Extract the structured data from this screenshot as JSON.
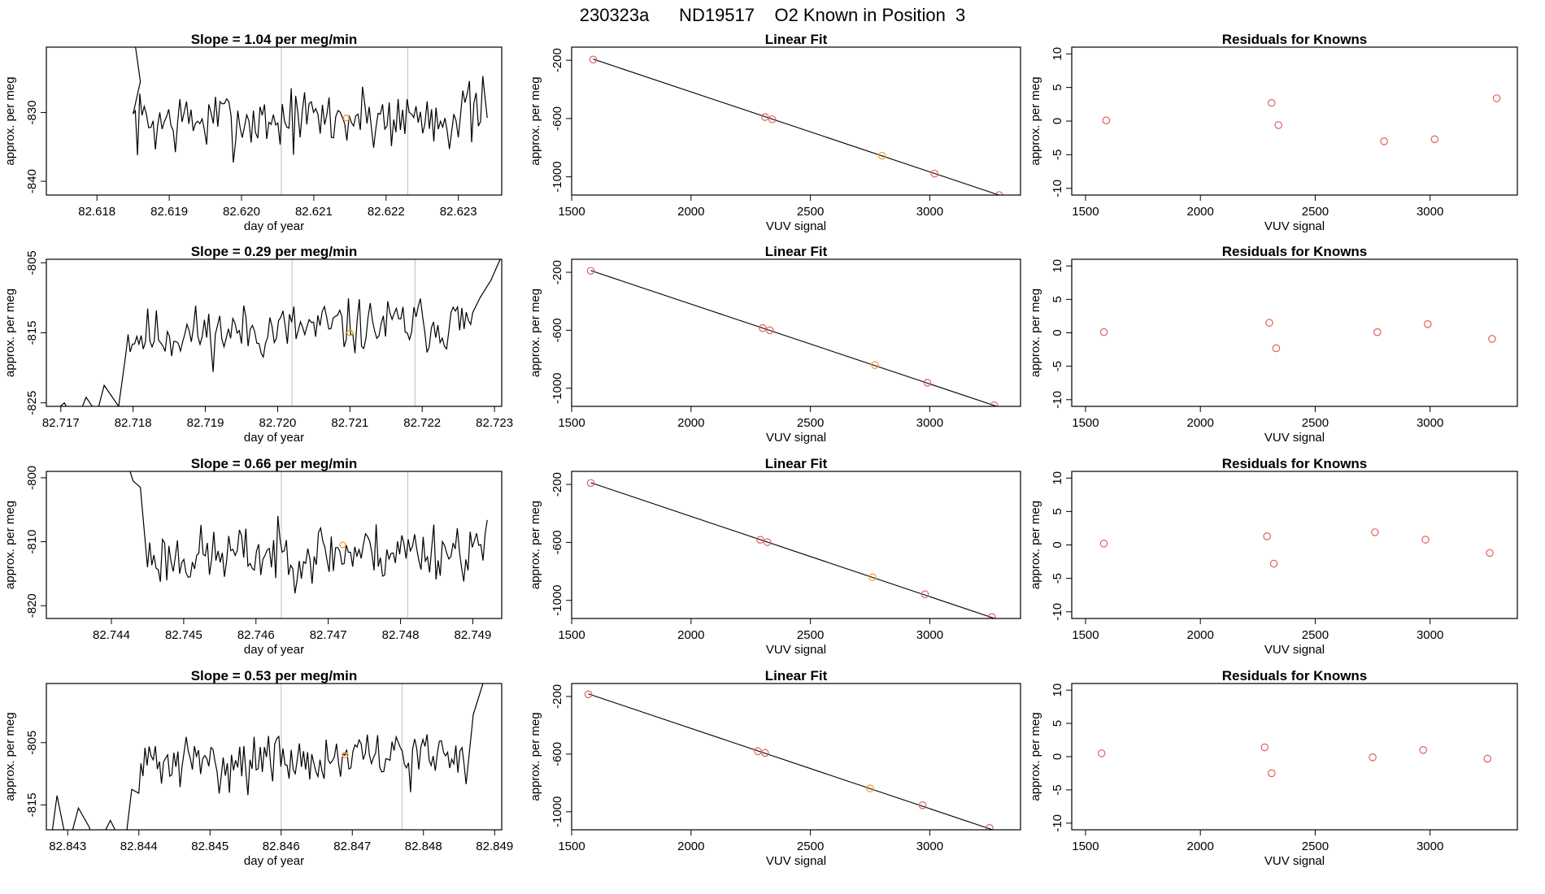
{
  "figure": {
    "title": "230323a      ND19517    O2 Known in Position  3",
    "colors": {
      "line": "#000000",
      "known_point": "#e06060",
      "highlight": "#f0a030",
      "marker_line": "#c8c8c8"
    }
  },
  "chart_data": [
    {
      "type": "line",
      "row": 0,
      "col": 0,
      "title": "Slope =  1.04  per meg/min",
      "xlabel": "day of year",
      "ylabel": "approx. per meg",
      "xlim": [
        82.6173,
        82.6236
      ],
      "ylim": [
        -842,
        -820.5
      ],
      "xticks": [
        "82.618",
        "82.619",
        "82.620",
        "82.621",
        "82.622",
        "82.623"
      ],
      "yticks": [
        "-840",
        "-830"
      ],
      "marker_x": [
        82.62055,
        82.6223
      ],
      "highlight_point": [
        82.62145,
        -830.8
      ],
      "series": {
        "x_start": 82.6185,
        "x_end": 82.6234,
        "n": 160,
        "base": -831.5,
        "trend": 1.2,
        "amp": 4.2,
        "seed": 7,
        "lead": [
          [
            82.6185,
            -818
          ],
          [
            82.6186,
            -825.5
          ]
        ]
      }
    },
    {
      "type": "scatter",
      "row": 0,
      "col": 1,
      "title": "Linear Fit",
      "xlabel": "VUV signal",
      "ylabel": "approx. per meg",
      "xlim": [
        1500,
        3380
      ],
      "ylim": [
        -1125,
        -110
      ],
      "xticks": [
        "1500",
        "2000",
        "2500",
        "3000"
      ],
      "yticks": [
        "-200",
        "-600",
        "-1000"
      ],
      "fit": [
        [
          1590,
          -192
        ],
        [
          3290,
          -1125
        ]
      ],
      "points": [
        [
          1590,
          -195
        ],
        [
          2310,
          -590
        ],
        [
          2340,
          -605
        ],
        [
          2800,
          -855
        ],
        [
          3020,
          -978
        ],
        [
          3290,
          -1125
        ]
      ],
      "highlight_index": 3
    },
    {
      "type": "scatter",
      "row": 0,
      "col": 2,
      "title": "Residuals for Knowns",
      "xlabel": "VUV signal",
      "ylabel": "approx. per meg",
      "xlim": [
        1440,
        3380
      ],
      "ylim": [
        -11,
        11
      ],
      "xticks": [
        "1500",
        "2000",
        "2500",
        "3000"
      ],
      "yticks": [
        "10",
        "5",
        "0",
        "-5",
        "-10"
      ],
      "points": [
        [
          1590,
          0.1
        ],
        [
          2310,
          2.7
        ],
        [
          2340,
          -0.6
        ],
        [
          2800,
          -3.0
        ],
        [
          3020,
          -2.7
        ],
        [
          3290,
          3.4
        ]
      ]
    },
    {
      "type": "line",
      "row": 1,
      "col": 0,
      "title": "Slope =  0.29  per meg/min",
      "xlabel": "day of year",
      "ylabel": "approx. per meg",
      "xlim": [
        82.7168,
        82.7231
      ],
      "ylim": [
        -825.5,
        -804.5
      ],
      "xticks": [
        "82.717",
        "82.718",
        "82.719",
        "82.720",
        "82.721",
        "82.722",
        "82.723"
      ],
      "yticks": [
        "-805",
        "-815",
        "-825"
      ],
      "marker_x": [
        82.7202,
        82.7219
      ],
      "highlight_point": [
        82.721,
        -815.0
      ],
      "series": {
        "x_start": 82.7179,
        "x_end": 82.7227,
        "n": 160,
        "base": -815.5,
        "trend": 2.0,
        "amp": 3.4,
        "seed": 11,
        "lead": [
          [
            82.7167,
            -828
          ],
          [
            82.71705,
            -825.0
          ],
          [
            82.7172,
            -828
          ],
          [
            82.71735,
            -824.2
          ],
          [
            82.7175,
            -826.5
          ],
          [
            82.7176,
            -822.5
          ],
          [
            82.7178,
            -825.5
          ]
        ],
        "tail": [
          [
            82.7228,
            -810
          ],
          [
            82.72295,
            -807.5
          ],
          [
            82.7231,
            -804.0
          ]
        ]
      }
    },
    {
      "type": "scatter",
      "row": 1,
      "col": 1,
      "title": "Linear Fit",
      "xlabel": "VUV signal",
      "ylabel": "approx. per meg",
      "xlim": [
        1500,
        3380
      ],
      "ylim": [
        -1125,
        -110
      ],
      "xticks": [
        "1500",
        "2000",
        "2500",
        "3000"
      ],
      "yticks": [
        "-200",
        "-600",
        "-1000"
      ],
      "fit": [
        [
          1580,
          -188
        ],
        [
          3290,
          -1130
        ]
      ],
      "points": [
        [
          1580,
          -190
        ],
        [
          2300,
          -585
        ],
        [
          2330,
          -600
        ],
        [
          2770,
          -840
        ],
        [
          2990,
          -962
        ],
        [
          3270,
          -1118
        ]
      ],
      "highlight_index": 3
    },
    {
      "type": "scatter",
      "row": 1,
      "col": 2,
      "title": "Residuals for Knowns",
      "xlabel": "VUV signal",
      "ylabel": "approx. per meg",
      "xlim": [
        1440,
        3380
      ],
      "ylim": [
        -11,
        11
      ],
      "xticks": [
        "1500",
        "2000",
        "2500",
        "3000"
      ],
      "yticks": [
        "10",
        "5",
        "0",
        "-5",
        "-10"
      ],
      "points": [
        [
          1580,
          0.1
        ],
        [
          2300,
          1.5
        ],
        [
          2330,
          -2.3
        ],
        [
          2770,
          0.1
        ],
        [
          2990,
          1.3
        ],
        [
          3270,
          -0.9
        ]
      ]
    },
    {
      "type": "line",
      "row": 2,
      "col": 0,
      "title": "Slope =  0.66  per meg/min",
      "xlabel": "day of year",
      "ylabel": "approx. per meg",
      "xlim": [
        82.7431,
        82.7494
      ],
      "ylim": [
        -822,
        -799
      ],
      "xticks": [
        "82.744",
        "82.745",
        "82.746",
        "82.747",
        "82.748",
        "82.749"
      ],
      "yticks": [
        "-800",
        "-810",
        "-820"
      ],
      "marker_x": [
        82.74635,
        82.7481
      ],
      "highlight_point": [
        82.7472,
        -810.5
      ],
      "series": {
        "x_start": 82.7445,
        "x_end": 82.7492,
        "n": 160,
        "base": -812.5,
        "trend": 1.5,
        "amp": 4.0,
        "seed": 23,
        "lead": [
          [
            82.7442,
            -797
          ],
          [
            82.7443,
            -800.5
          ],
          [
            82.7444,
            -801.5
          ]
        ]
      }
    },
    {
      "type": "scatter",
      "row": 2,
      "col": 1,
      "title": "Linear Fit",
      "xlabel": "VUV signal",
      "ylabel": "approx. per meg",
      "xlim": [
        1500,
        3380
      ],
      "ylim": [
        -1125,
        -110
      ],
      "xticks": [
        "1500",
        "2000",
        "2500",
        "3000"
      ],
      "yticks": [
        "-200",
        "-600",
        "-1000"
      ],
      "fit": [
        [
          1580,
          -188
        ],
        [
          3290,
          -1135
        ]
      ],
      "points": [
        [
          1580,
          -190
        ],
        [
          2290,
          -582
        ],
        [
          2320,
          -598
        ],
        [
          2760,
          -840
        ],
        [
          2980,
          -958
        ],
        [
          3260,
          -1115
        ]
      ],
      "highlight_index": 3
    },
    {
      "type": "scatter",
      "row": 2,
      "col": 2,
      "title": "Residuals for Knowns",
      "xlabel": "VUV signal",
      "ylabel": "approx. per meg",
      "xlim": [
        1440,
        3380
      ],
      "ylim": [
        -11,
        11
      ],
      "xticks": [
        "1500",
        "2000",
        "2500",
        "3000"
      ],
      "yticks": [
        "10",
        "5",
        "0",
        "-5",
        "-10"
      ],
      "points": [
        [
          1580,
          0.2
        ],
        [
          2290,
          1.3
        ],
        [
          2320,
          -2.8
        ],
        [
          2760,
          1.9
        ],
        [
          2980,
          0.8
        ],
        [
          3260,
          -1.2
        ]
      ]
    },
    {
      "type": "line",
      "row": 3,
      "col": 0,
      "title": "Slope =  0.53  per meg/min",
      "xlabel": "day of year",
      "ylabel": "approx. per meg",
      "xlim": [
        82.8427,
        82.8491
      ],
      "ylim": [
        -819,
        -795.5
      ],
      "xticks": [
        "82.843",
        "82.844",
        "82.845",
        "82.846",
        "82.847",
        "82.848",
        "82.849"
      ],
      "yticks": [
        "-805",
        "-815"
      ],
      "marker_x": [
        82.846,
        82.8477
      ],
      "highlight_point": [
        82.8469,
        -807.0
      ],
      "series": {
        "x_start": 82.844,
        "x_end": 82.8486,
        "n": 160,
        "base": -808.5,
        "trend": 1.5,
        "amp": 3.6,
        "seed": 31,
        "lead": [
          [
            82.84275,
            -822
          ],
          [
            82.84285,
            -813.5
          ],
          [
            82.843,
            -822
          ],
          [
            82.84315,
            -815.5
          ],
          [
            82.8433,
            -818.5
          ],
          [
            82.8434,
            -822
          ],
          [
            82.8436,
            -817.5
          ],
          [
            82.8438,
            -822
          ],
          [
            82.8439,
            -812.5
          ]
        ],
        "tail": [
          [
            82.8487,
            -800.5
          ],
          [
            82.84885,
            -795.0
          ]
        ]
      }
    },
    {
      "type": "scatter",
      "row": 3,
      "col": 1,
      "title": "Linear Fit",
      "xlabel": "VUV signal",
      "ylabel": "approx. per meg",
      "xlim": [
        1500,
        3380
      ],
      "ylim": [
        -1125,
        -110
      ],
      "xticks": [
        "1500",
        "2000",
        "2500",
        "3000"
      ],
      "yticks": [
        "-200",
        "-600",
        "-1000"
      ],
      "fit": [
        [
          1570,
          -182
        ],
        [
          3290,
          -1140
        ]
      ],
      "points": [
        [
          1570,
          -185
        ],
        [
          2280,
          -580
        ],
        [
          2310,
          -592
        ],
        [
          2750,
          -838
        ],
        [
          2970,
          -955
        ],
        [
          3250,
          -1112
        ]
      ],
      "highlight_index": 3
    },
    {
      "type": "scatter",
      "row": 3,
      "col": 2,
      "title": "Residuals for Knowns",
      "xlabel": "VUV signal",
      "ylabel": "approx. per meg",
      "xlim": [
        1440,
        3380
      ],
      "ylim": [
        -11,
        11
      ],
      "xticks": [
        "1500",
        "2000",
        "2500",
        "3000"
      ],
      "yticks": [
        "10",
        "5",
        "0",
        "-5",
        "-10"
      ],
      "points": [
        [
          1570,
          0.5
        ],
        [
          2280,
          1.4
        ],
        [
          2310,
          -2.5
        ],
        [
          2750,
          -0.1
        ],
        [
          2970,
          1.0
        ],
        [
          3250,
          -0.3
        ]
      ]
    }
  ]
}
